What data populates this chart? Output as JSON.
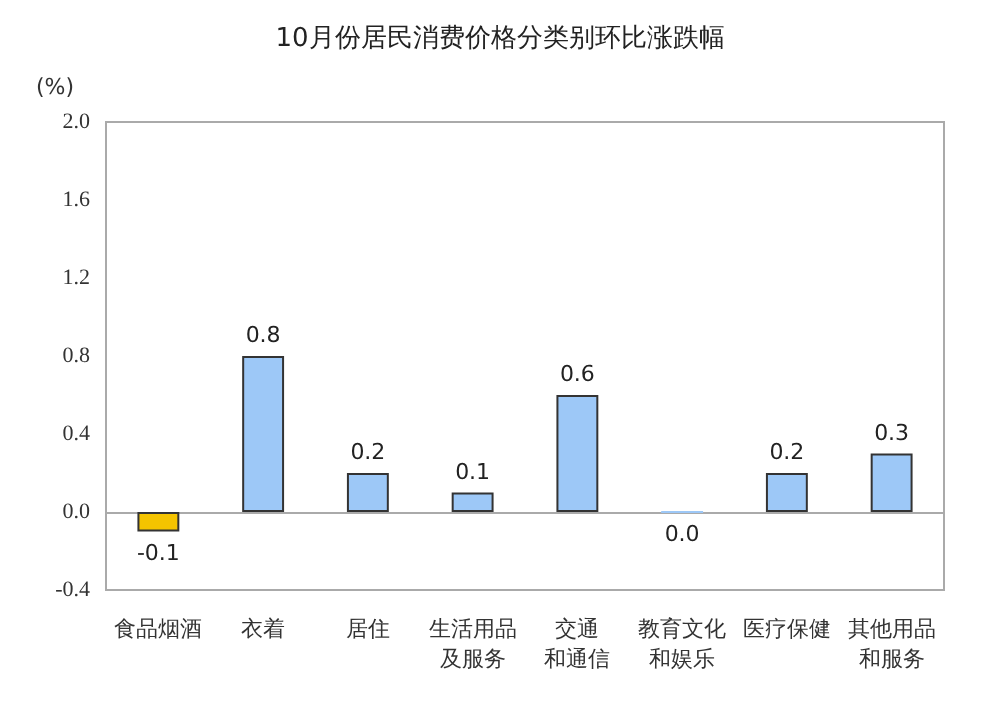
{
  "chart_data": {
    "type": "bar",
    "title": "10月份居民消费价格分类别环比涨跌幅",
    "ylabel": "(%)",
    "categories": [
      "食品烟酒",
      "衣着",
      "居住",
      "生活用品及服务",
      "交通和通信",
      "教育文化和娱乐",
      "医疗保健",
      "其他用品和服务"
    ],
    "values": [
      -0.1,
      0.8,
      0.2,
      0.1,
      0.6,
      0.0,
      0.2,
      0.3
    ],
    "colors": [
      "#f5c400",
      "#9dc8f7",
      "#9dc8f7",
      "#9dc8f7",
      "#9dc8f7",
      "#9dc8f7",
      "#9dc8f7",
      "#9dc8f7"
    ],
    "value_labels": [
      "-0.1",
      "0.8",
      "0.2",
      "0.1",
      "0.6",
      "0.0",
      "0.2",
      "0.3"
    ],
    "ylim": [
      -0.4,
      2.0
    ],
    "yticks": [
      {
        "value": -0.4,
        "label": "-0.4"
      },
      {
        "value": 0,
        "label": "0.0"
      },
      {
        "value": 0.4,
        "label": "0.4"
      },
      {
        "value": 0.8,
        "label": "0.8"
      },
      {
        "value": 1.2,
        "label": "1.2"
      },
      {
        "value": 1.6,
        "label": "1.6"
      },
      {
        "value": 2.0,
        "label": "2.0"
      }
    ]
  }
}
